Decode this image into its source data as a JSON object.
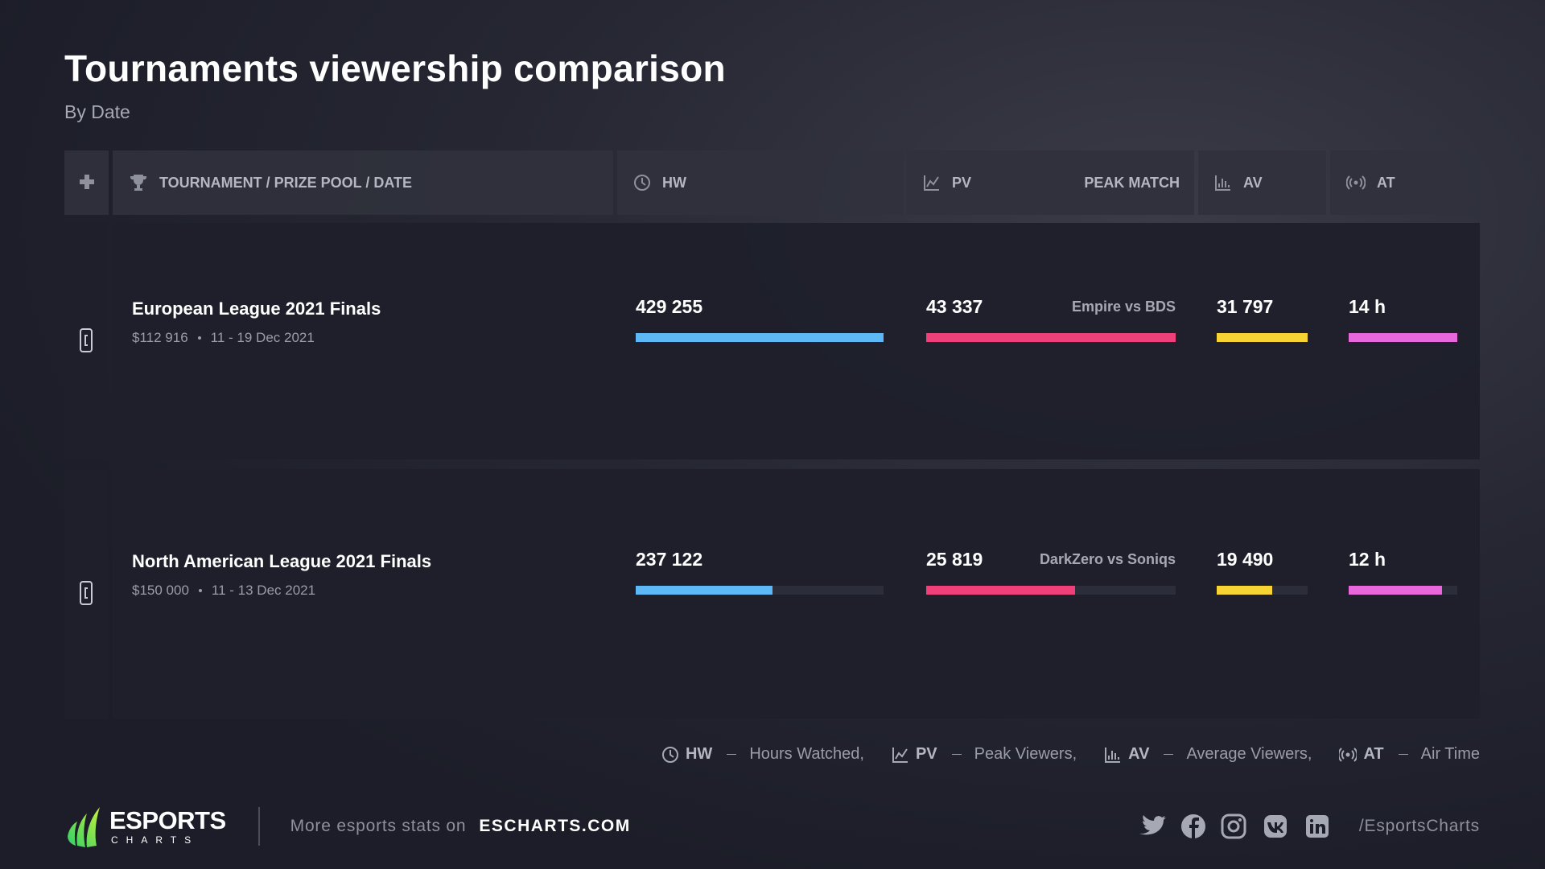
{
  "header": {
    "title": "Tournaments viewership comparison",
    "subtitle": "By Date"
  },
  "table": {
    "columns": {
      "tournament": "TOURNAMENT / PRIZE POOL / DATE",
      "hw": "HW",
      "pv": "PV",
      "peak_match": "PEAK MATCH",
      "av": "AV",
      "at": "AT"
    },
    "rows": [
      {
        "name": "European League 2021 Finals",
        "prize": "$112 916",
        "dates": "11 - 19 Dec 2021",
        "hw": {
          "value": 429255,
          "label": "429 255"
        },
        "pv": {
          "value": 43337,
          "label": "43 337"
        },
        "peak_match": "Empire vs BDS",
        "av": {
          "value": 31797,
          "label": "31 797"
        },
        "at": {
          "value": 14,
          "label": "14 h"
        }
      },
      {
        "name": "North American League 2021 Finals",
        "prize": "$150 000",
        "dates": "11 - 13 Dec 2021",
        "hw": {
          "value": 237122,
          "label": "237 122"
        },
        "pv": {
          "value": 25819,
          "label": "25 819"
        },
        "peak_match": "DarkZero vs Soniqs",
        "av": {
          "value": 19490,
          "label": "19 490"
        },
        "at": {
          "value": 12,
          "label": "12 h"
        }
      }
    ]
  },
  "legend": [
    {
      "abbr": "HW",
      "text": "Hours Watched,"
    },
    {
      "abbr": "PV",
      "text": "Peak Viewers,"
    },
    {
      "abbr": "AV",
      "text": "Average Viewers,"
    },
    {
      "abbr": "AT",
      "text": "Air Time"
    }
  ],
  "footer": {
    "logo_main": "ESPORTS",
    "logo_sub": "CHARTS",
    "promo": "More esports stats on",
    "site": "ESCHARTS.COM",
    "handle": "/EsportsCharts"
  }
}
